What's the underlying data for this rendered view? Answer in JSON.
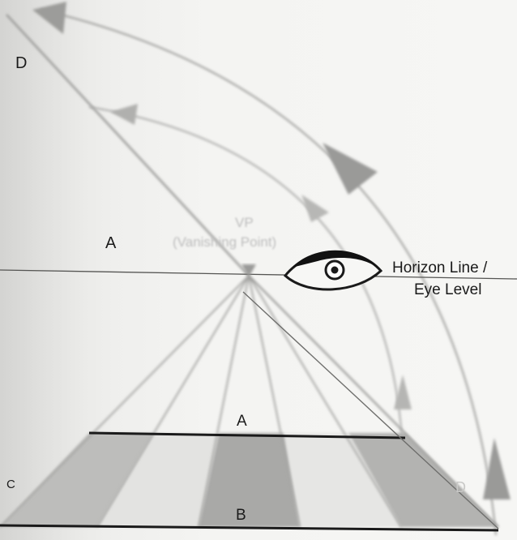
{
  "labels": {
    "d_top": "D",
    "a_left": "A",
    "vp_line1": "VP",
    "vp_line2": "(Vanishing Point)",
    "horizon_line1": "Horizon Line /",
    "horizon_line2": "Eye Level",
    "a_floor": "A",
    "b_floor": "B",
    "c_left": "C",
    "d_right": "D"
  },
  "icons": {
    "eye": "eye-icon",
    "arrow": "arrowhead-icon"
  },
  "colors": {
    "background": "#f4f4f2",
    "line_dark": "#1a1a1a",
    "line_gray": "#8a8a8a",
    "floor_dark": "#a9a9a9",
    "floor_light": "#e2e2e0",
    "arc": "#9a9a9a"
  }
}
